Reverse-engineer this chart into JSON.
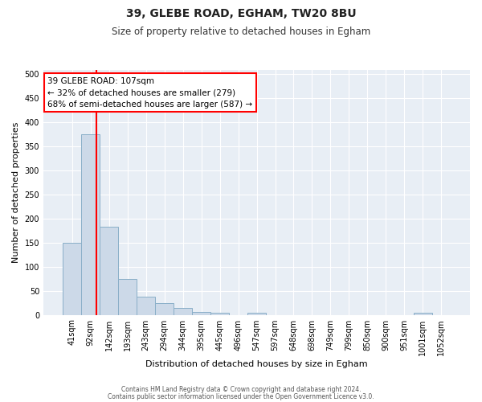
{
  "title1": "39, GLEBE ROAD, EGHAM, TW20 8BU",
  "title2": "Size of property relative to detached houses in Egham",
  "xlabel": "Distribution of detached houses by size in Egham",
  "ylabel": "Number of detached properties",
  "bar_labels": [
    "41sqm",
    "92sqm",
    "142sqm",
    "193sqm",
    "243sqm",
    "294sqm",
    "344sqm",
    "395sqm",
    "445sqm",
    "496sqm",
    "547sqm",
    "597sqm",
    "648sqm",
    "698sqm",
    "749sqm",
    "799sqm",
    "850sqm",
    "900sqm",
    "951sqm",
    "1001sqm",
    "1052sqm"
  ],
  "bar_values": [
    150,
    375,
    183,
    75,
    37,
    25,
    15,
    6,
    4,
    0,
    4,
    0,
    0,
    0,
    0,
    0,
    0,
    0,
    0,
    5,
    0
  ],
  "bar_color": "#ccd9e8",
  "bar_edge_color": "#8aafc8",
  "red_line_x": 1.3,
  "ylim": [
    0,
    510
  ],
  "yticks": [
    0,
    50,
    100,
    150,
    200,
    250,
    300,
    350,
    400,
    450,
    500
  ],
  "annotation_title": "39 GLEBE ROAD: 107sqm",
  "annotation_line1": "← 32% of detached houses are smaller (279)",
  "annotation_line2": "68% of semi-detached houses are larger (587) →",
  "footer1": "Contains HM Land Registry data © Crown copyright and database right 2024.",
  "footer2": "Contains public sector information licensed under the Open Government Licence v3.0.",
  "bg_color": "#ffffff",
  "plot_bg_color": "#e8eef5"
}
